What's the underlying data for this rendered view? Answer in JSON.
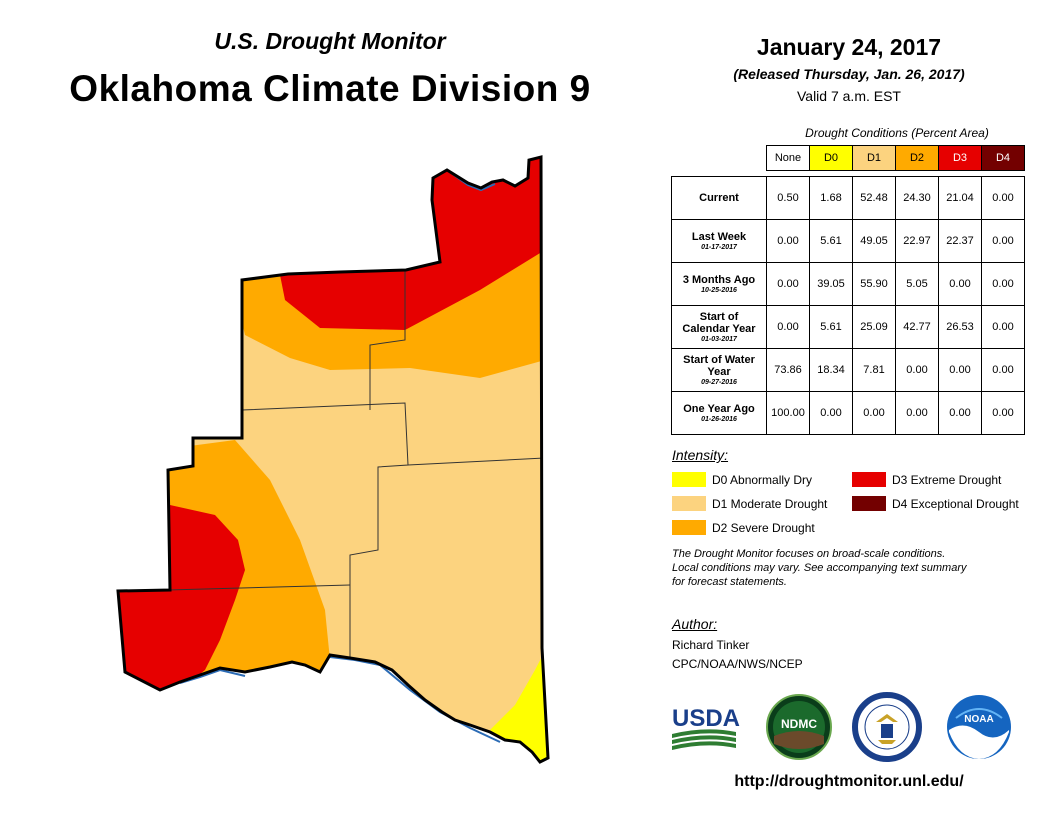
{
  "header": {
    "subtitle": "U.S. Drought Monitor",
    "title": "Oklahoma Climate Division 9"
  },
  "date": {
    "main": "January 24, 2017",
    "released": "(Released Thursday, Jan. 26, 2017)",
    "valid": "Valid 7 a.m. EST"
  },
  "table": {
    "caption": "Drought Conditions (Percent Area)",
    "columns": [
      {
        "label": "None",
        "color": "#ffffff",
        "text_color": "#000000"
      },
      {
        "label": "D0",
        "color": "#ffff00",
        "text_color": "#000000"
      },
      {
        "label": "D1",
        "color": "#fcd37f",
        "text_color": "#000000"
      },
      {
        "label": "D2",
        "color": "#ffaa00",
        "text_color": "#000000"
      },
      {
        "label": "D3",
        "color": "#e60000",
        "text_color": "#ffffff"
      },
      {
        "label": "D4",
        "color": "#730000",
        "text_color": "#ffffff"
      }
    ],
    "rows": [
      {
        "label": "Current",
        "date": "",
        "values": [
          "0.50",
          "1.68",
          "52.48",
          "24.30",
          "21.04",
          "0.00"
        ]
      },
      {
        "label": "Last Week",
        "date": "01-17-2017",
        "values": [
          "0.00",
          "5.61",
          "49.05",
          "22.97",
          "22.37",
          "0.00"
        ]
      },
      {
        "label": "3 Months Ago",
        "date": "10-25-2016",
        "values": [
          "0.00",
          "39.05",
          "55.90",
          "5.05",
          "0.00",
          "0.00"
        ]
      },
      {
        "label": "Start of Calendar Year",
        "date": "01-03-2017",
        "values": [
          "0.00",
          "5.61",
          "25.09",
          "42.77",
          "26.53",
          "0.00"
        ]
      },
      {
        "label": "Start of Water Year",
        "date": "09-27-2016",
        "values": [
          "73.86",
          "18.34",
          "7.81",
          "0.00",
          "0.00",
          "0.00"
        ]
      },
      {
        "label": "One Year Ago",
        "date": "01-26-2016",
        "values": [
          "100.00",
          "0.00",
          "0.00",
          "0.00",
          "0.00",
          "0.00"
        ]
      }
    ]
  },
  "legend": {
    "title": "Intensity:",
    "items": [
      {
        "label": "D0 Abnormally Dry",
        "color": "#ffff00"
      },
      {
        "label": "D1 Moderate Drought",
        "color": "#fcd37f"
      },
      {
        "label": "D2 Severe Drought",
        "color": "#ffaa00"
      },
      {
        "label": "D3 Extreme Drought",
        "color": "#e60000"
      },
      {
        "label": "D4 Exceptional Drought",
        "color": "#730000"
      }
    ]
  },
  "note": {
    "line1": "The Drought Monitor focuses on broad-scale conditions.",
    "line2": "Local conditions may vary. See accompanying text summary",
    "line3": "for forecast statements."
  },
  "author": {
    "label": "Author:",
    "name": "Richard Tinker",
    "org": "CPC/NOAA/NWS/NCEP"
  },
  "logos": {
    "usda": "USDA",
    "ndmc": "NDMC",
    "noaa": "NOAA"
  },
  "url": "http://droughtmonitor.unl.edu/"
}
